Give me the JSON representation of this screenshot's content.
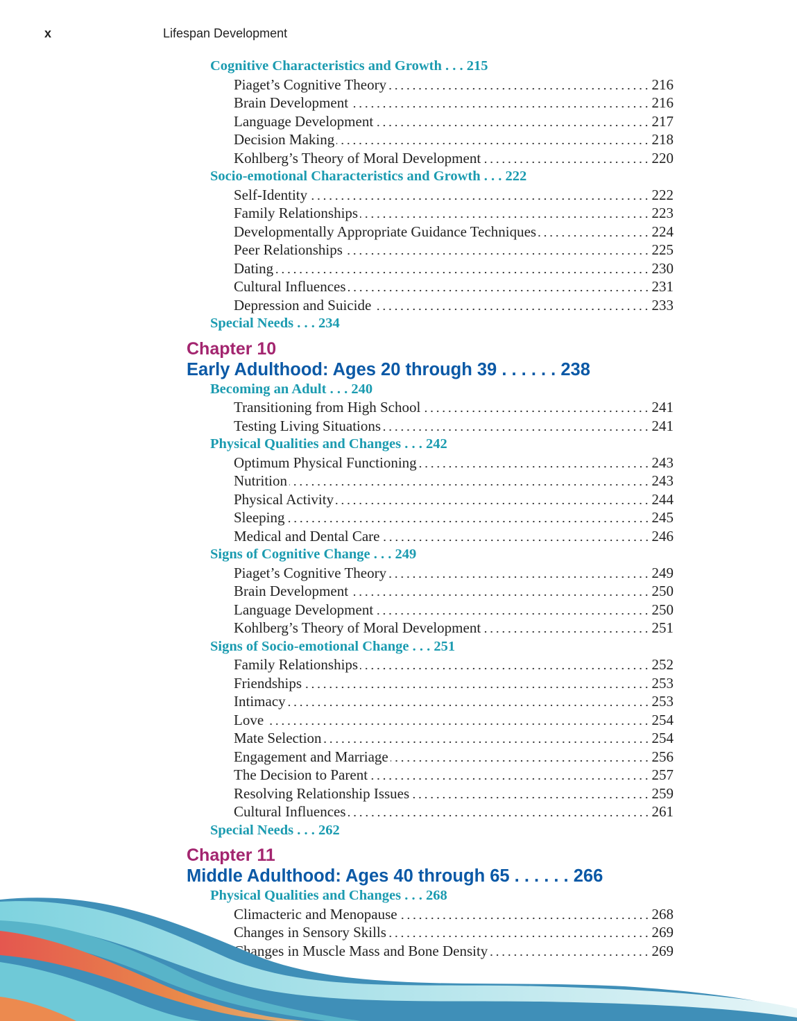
{
  "header": {
    "page_number": "x",
    "title": "Lifespan Development"
  },
  "toc": [
    {
      "type": "section",
      "text": "Cognitive Characteristics and Growth . . . 215"
    },
    {
      "type": "item",
      "text": "Piaget’s Cognitive Theory",
      "page": "216"
    },
    {
      "type": "item",
      "text": "Brain Development",
      "page": "216"
    },
    {
      "type": "item",
      "text": "Language Development",
      "page": "217"
    },
    {
      "type": "item",
      "text": "Decision Making",
      "page": "218"
    },
    {
      "type": "item",
      "text": "Kohlberg’s Theory of Moral Development",
      "page": "220"
    },
    {
      "type": "section",
      "text": "Socio-emotional Characteristics and Growth . . . 222"
    },
    {
      "type": "item",
      "text": "Self-Identity",
      "page": "222"
    },
    {
      "type": "item",
      "text": "Family Relationships",
      "page": "223"
    },
    {
      "type": "item",
      "text": "Developmentally Appropriate Guidance Techniques",
      "page": "224"
    },
    {
      "type": "item",
      "text": "Peer Relationships",
      "page": "225"
    },
    {
      "type": "item",
      "text": "Dating",
      "page": "230"
    },
    {
      "type": "item",
      "text": "Cultural Influences",
      "page": "231"
    },
    {
      "type": "item",
      "text": "Depression and Suicide",
      "page": "233"
    },
    {
      "type": "section",
      "text": "Special Needs . . . 234"
    },
    {
      "type": "chapter",
      "text": "Chapter 10"
    },
    {
      "type": "chapter_title",
      "text": "Early Adulthood: Ages 20 through 39 . . . . . . 238"
    },
    {
      "type": "section",
      "text": "Becoming an Adult . . . 240"
    },
    {
      "type": "item",
      "text": "Transitioning from High School",
      "page": "241"
    },
    {
      "type": "item",
      "text": "Testing Living Situations",
      "page": "241"
    },
    {
      "type": "section",
      "text": "Physical Qualities and Changes . . . 242"
    },
    {
      "type": "item",
      "text": "Optimum Physical Functioning",
      "page": "243"
    },
    {
      "type": "item",
      "text": "Nutrition",
      "page": "243"
    },
    {
      "type": "item",
      "text": "Physical Activity",
      "page": "244"
    },
    {
      "type": "item",
      "text": "Sleeping",
      "page": "245"
    },
    {
      "type": "item",
      "text": "Medical and Dental Care",
      "page": "246"
    },
    {
      "type": "section",
      "text": "Signs of Cognitive Change . . . 249"
    },
    {
      "type": "item",
      "text": "Piaget’s Cognitive Theory",
      "page": "249"
    },
    {
      "type": "item",
      "text": "Brain Development",
      "page": "250"
    },
    {
      "type": "item",
      "text": "Language Development",
      "page": "250"
    },
    {
      "type": "item",
      "text": "Kohlberg’s Theory of Moral Development",
      "page": "251"
    },
    {
      "type": "section",
      "text": "Signs of Socio-emotional Change . . . 251"
    },
    {
      "type": "item",
      "text": "Family Relationships",
      "page": "252"
    },
    {
      "type": "item",
      "text": "Friendships",
      "page": "253"
    },
    {
      "type": "item",
      "text": "Intimacy",
      "page": "253"
    },
    {
      "type": "item",
      "text": "Love",
      "page": "254"
    },
    {
      "type": "item",
      "text": "Mate Selection",
      "page": "254"
    },
    {
      "type": "item",
      "text": "Engagement and Marriage",
      "page": "256"
    },
    {
      "type": "item",
      "text": "The Decision to Parent",
      "page": "257"
    },
    {
      "type": "item",
      "text": "Resolving Relationship Issues",
      "page": "259"
    },
    {
      "type": "item",
      "text": "Cultural Influences",
      "page": "261"
    },
    {
      "type": "section",
      "text": "Special Needs . . . 262"
    },
    {
      "type": "chapter",
      "text": "Chapter 11"
    },
    {
      "type": "chapter_title",
      "text": "Middle Adulthood: Ages 40 through 65 . . . . . . 266"
    },
    {
      "type": "section",
      "text": "Physical Qualities and Changes . . . 268"
    },
    {
      "type": "item",
      "text": "Climacteric and Menopause",
      "page": "268"
    },
    {
      "type": "item",
      "text": "Changes in Sensory Skills",
      "page": "269"
    },
    {
      "type": "item",
      "text": "Changes in Muscle Mass and Bone Density",
      "page": "269"
    }
  ],
  "colors": {
    "chapter": "#a3256f",
    "chapter_title": "#0b59a6",
    "section": "#1b9bb0",
    "text": "#222222"
  }
}
